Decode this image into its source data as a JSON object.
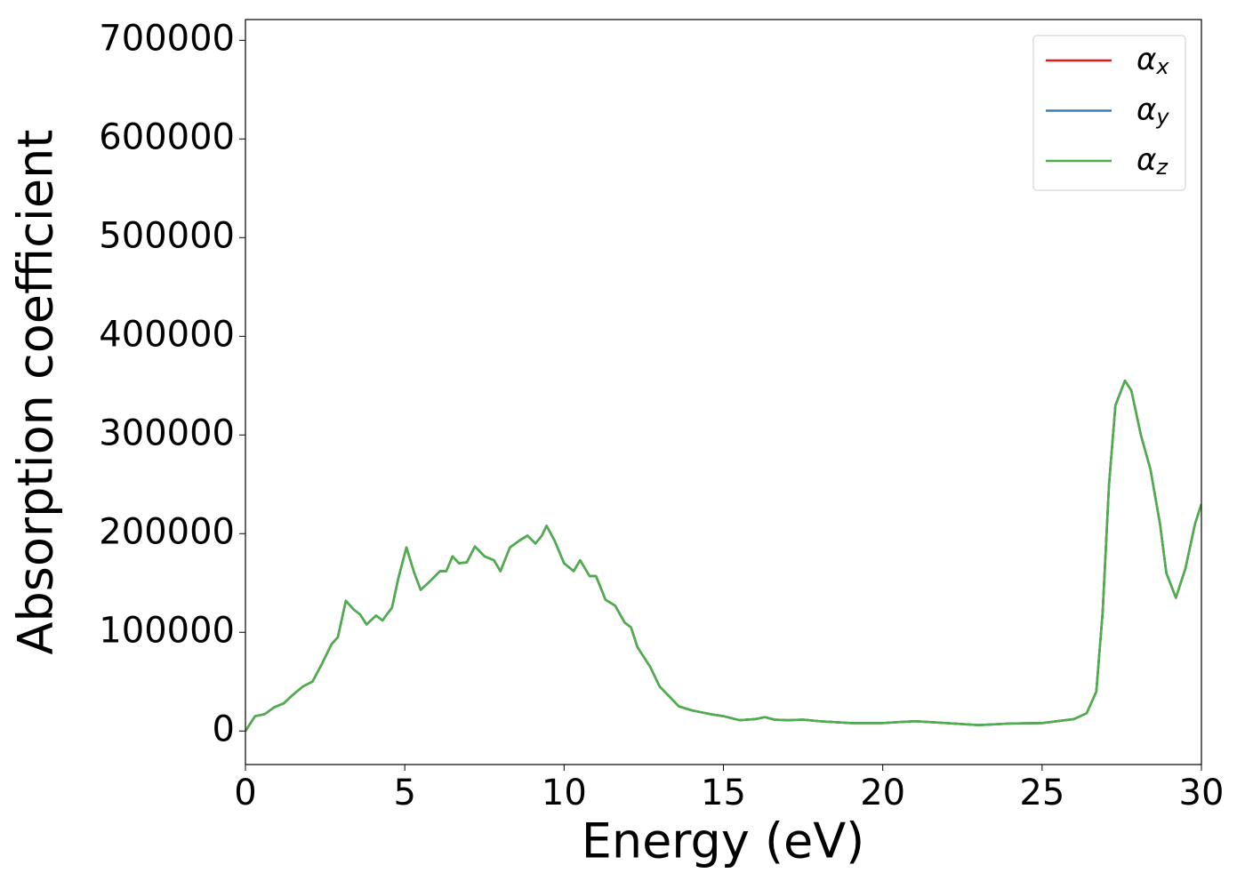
{
  "chart_data": {
    "type": "line",
    "xlabel": "Energy (eV)",
    "ylabel": "Absorption coefficient",
    "x": [
      0,
      0.3,
      0.6,
      0.9,
      1.2,
      1.5,
      1.8,
      2.1,
      2.4,
      2.7,
      2.9,
      3.15,
      3.4,
      3.6,
      3.8,
      4.1,
      4.3,
      4.6,
      4.8,
      5.05,
      5.3,
      5.5,
      5.8,
      6.1,
      6.3,
      6.5,
      6.7,
      6.95,
      7.2,
      7.5,
      7.8,
      8.0,
      8.3,
      8.6,
      8.85,
      9.1,
      9.3,
      9.45,
      9.7,
      10.0,
      10.3,
      10.5,
      10.8,
      11.0,
      11.3,
      11.6,
      11.9,
      12.1,
      12.3,
      12.7,
      13.0,
      13.3,
      13.6,
      14.0,
      14.3,
      14.6,
      15.0,
      15.5,
      16.0,
      16.3,
      16.6,
      17.0,
      17.5,
      18.0,
      19.0,
      20.0,
      21.0,
      22.0,
      23.0,
      24.0,
      25.0,
      26.0,
      26.4,
      26.7,
      26.9,
      27.1,
      27.3,
      27.6,
      27.8,
      28.1,
      28.4,
      28.7,
      28.9,
      29.2,
      29.5,
      29.8,
      30.0
    ],
    "series": [
      {
        "name": "αx",
        "color": "#e41a1c",
        "values": [
          0,
          15000,
          17000,
          24000,
          28000,
          37000,
          45000,
          50000,
          68000,
          88000,
          95000,
          132000,
          123000,
          118000,
          108000,
          117000,
          112000,
          125000,
          155000,
          186000,
          160000,
          143000,
          152000,
          162000,
          162000,
          177000,
          170000,
          171000,
          187000,
          177000,
          173000,
          162000,
          186000,
          193000,
          198000,
          190000,
          198000,
          208000,
          193000,
          170000,
          162000,
          173000,
          157000,
          157000,
          133000,
          127000,
          110000,
          105000,
          85000,
          65000,
          45000,
          35000,
          25000,
          21000,
          19000,
          17000,
          15000,
          11000,
          12000,
          14000,
          11500,
          11000,
          11500,
          10000,
          8000,
          8000,
          10000,
          8000,
          6000,
          7500,
          8000,
          12000,
          18000,
          40000,
          120000,
          250000,
          330000,
          355000,
          345000,
          300000,
          265000,
          210000,
          160000,
          135000,
          165000,
          210000,
          230000
        ]
      },
      {
        "name": "αy",
        "color": "#377eb8",
        "values": [
          0,
          15000,
          17000,
          24000,
          28000,
          37000,
          45000,
          50000,
          68000,
          88000,
          95000,
          132000,
          123000,
          118000,
          108000,
          117000,
          112000,
          125000,
          155000,
          186000,
          160000,
          143000,
          152000,
          162000,
          162000,
          177000,
          170000,
          171000,
          187000,
          177000,
          173000,
          162000,
          186000,
          193000,
          198000,
          190000,
          198000,
          208000,
          193000,
          170000,
          162000,
          173000,
          157000,
          157000,
          133000,
          127000,
          110000,
          105000,
          85000,
          65000,
          45000,
          35000,
          25000,
          21000,
          19000,
          17000,
          15000,
          11000,
          12000,
          14000,
          11500,
          11000,
          11500,
          10000,
          8000,
          8000,
          10000,
          8000,
          6000,
          7500,
          8000,
          12000,
          18000,
          40000,
          120000,
          250000,
          330000,
          355000,
          345000,
          300000,
          265000,
          210000,
          160000,
          135000,
          165000,
          210000,
          230000
        ]
      },
      {
        "name": "αz",
        "color": "#4daf4a",
        "values": [
          0,
          15000,
          17000,
          24000,
          28000,
          37000,
          45000,
          50000,
          68000,
          88000,
          95000,
          132000,
          123000,
          118000,
          108000,
          117000,
          112000,
          125000,
          155000,
          186000,
          160000,
          143000,
          152000,
          162000,
          162000,
          177000,
          170000,
          171000,
          187000,
          177000,
          173000,
          162000,
          186000,
          193000,
          198000,
          190000,
          198000,
          208000,
          193000,
          170000,
          162000,
          173000,
          157000,
          157000,
          133000,
          127000,
          110000,
          105000,
          85000,
          65000,
          45000,
          35000,
          25000,
          21000,
          19000,
          17000,
          15000,
          11000,
          12000,
          14000,
          11500,
          11000,
          11500,
          10000,
          8000,
          8000,
          10000,
          8000,
          6000,
          7500,
          8000,
          12000,
          18000,
          40000,
          120000,
          250000,
          330000,
          355000,
          345000,
          300000,
          265000,
          210000,
          160000,
          135000,
          165000,
          210000,
          230000
        ]
      }
    ],
    "xlim": [
      0,
      30
    ],
    "xticks": [
      0,
      5,
      10,
      15,
      20,
      25,
      30
    ],
    "ylim": [
      -34000,
      721000
    ],
    "yticks": [
      0,
      100000,
      200000,
      300000,
      400000,
      500000,
      600000,
      700000
    ],
    "grid": false,
    "legend": "upper right"
  }
}
